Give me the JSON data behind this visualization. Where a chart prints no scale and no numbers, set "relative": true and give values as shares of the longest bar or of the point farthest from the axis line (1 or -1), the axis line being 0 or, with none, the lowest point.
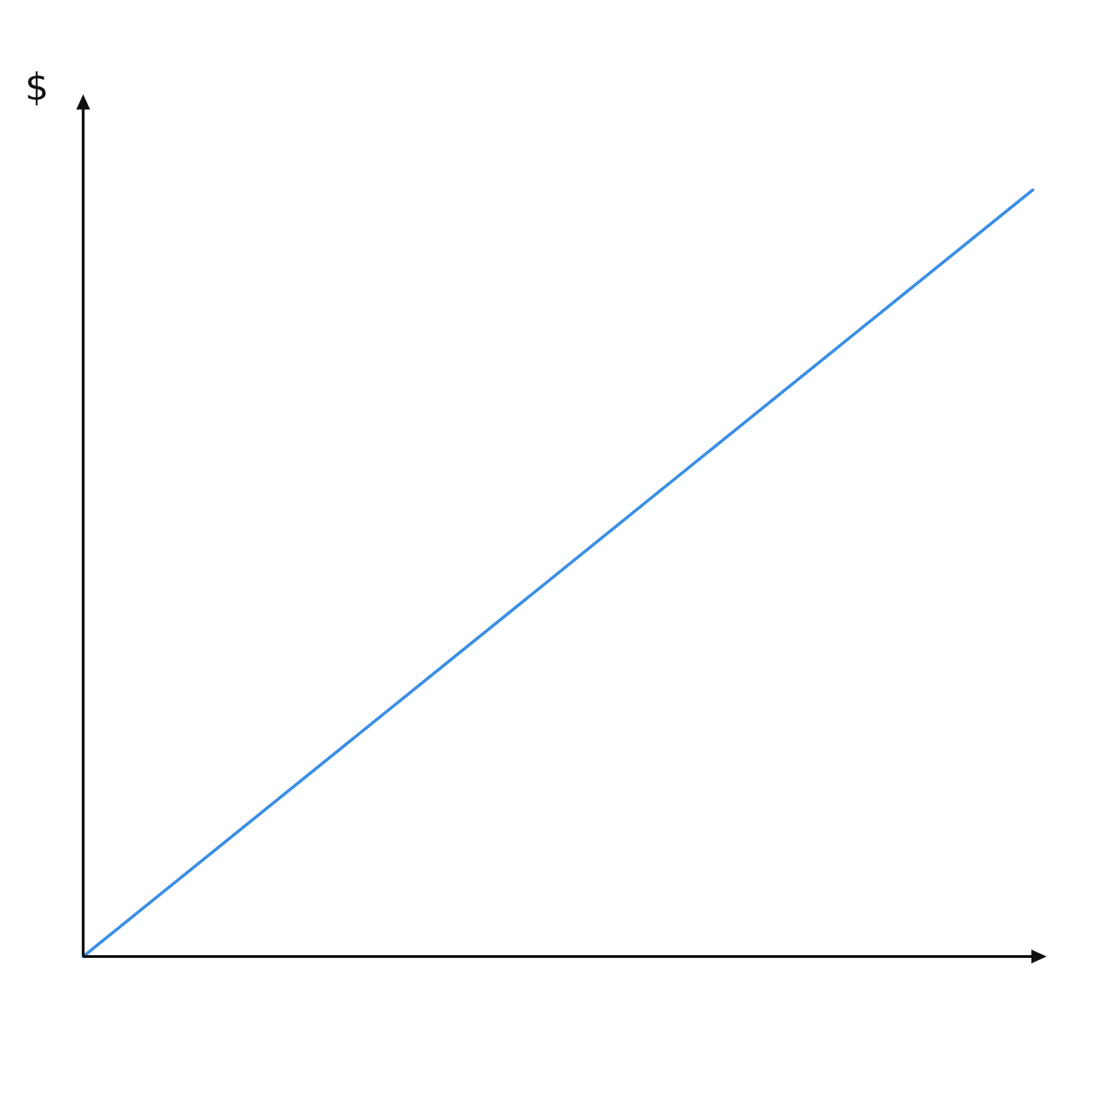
{
  "chart_data": {
    "type": "line",
    "ylabel": "$",
    "categories": [
      null,
      null
    ],
    "series": [
      {
        "color": "#3b8fe5",
        "values": [
          0,
          1
        ]
      }
    ],
    "relative": true,
    "tick_labels": false
  }
}
